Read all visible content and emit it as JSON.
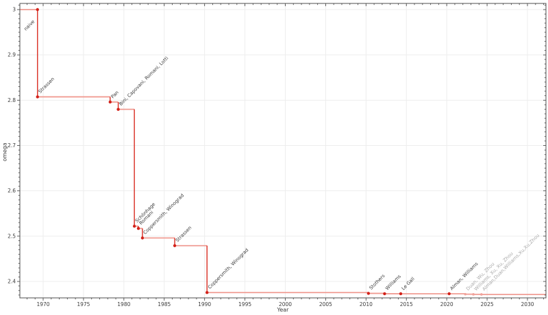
{
  "chart_data": {
    "type": "line",
    "subtype": "step-post",
    "title": "",
    "xlabel": "Year",
    "ylabel": "omega",
    "grid": true,
    "legend": "none",
    "xlim": [
      1967.1,
      2032.3
    ],
    "ylim": [
      2.364,
      3.014
    ],
    "x_ticks": [
      1970,
      1975,
      1980,
      1985,
      1990,
      1995,
      2000,
      2005,
      2010,
      2015,
      2020,
      2025,
      2030
    ],
    "x_minor_step_years": 1,
    "y_ticks": [
      2.4,
      2.5,
      2.6,
      2.7,
      2.8,
      2.9,
      3
    ],
    "y_tick_labels": [
      "2.4",
      "2.5",
      "2.6",
      "2.7",
      "2.8",
      "2.9",
      "3"
    ],
    "y_minor_step": 0.01,
    "points": [
      {
        "year": 1969,
        "omega": 3.0,
        "label": "naive",
        "status": "confirmed",
        "label_side": "below"
      },
      {
        "year": 1969,
        "omega": 2.8074,
        "label": "Strassen",
        "status": "confirmed"
      },
      {
        "year": 1978,
        "omega": 2.796,
        "label": "Pan",
        "status": "confirmed"
      },
      {
        "year": 1979,
        "omega": 2.7799,
        "label": "Bini, Capovani, Romani, Lotti",
        "status": "confirmed"
      },
      {
        "year": 1981,
        "omega": 2.522,
        "label": "Schönhage",
        "status": "confirmed"
      },
      {
        "year": 1981.5,
        "omega": 2.517,
        "label": "Romani",
        "status": "confirmed"
      },
      {
        "year": 1982,
        "omega": 2.496,
        "label": "Coppersmith, Winograd",
        "status": "confirmed"
      },
      {
        "year": 1986,
        "omega": 2.479,
        "label": "Strassen",
        "status": "confirmed"
      },
      {
        "year": 1990,
        "omega": 2.3755,
        "label": "Coppersmith, Winograd",
        "status": "confirmed"
      },
      {
        "year": 2010,
        "omega": 2.3737,
        "label": "Stothers",
        "status": "confirmed"
      },
      {
        "year": 2012,
        "omega": 2.3729,
        "label": "Williams",
        "status": "confirmed"
      },
      {
        "year": 2014,
        "omega": 2.3728639,
        "label": "Le Gall",
        "status": "confirmed"
      },
      {
        "year": 2020,
        "omega": 2.3728596,
        "label": "Alman, Williams",
        "status": "confirmed"
      },
      {
        "year": 2022,
        "omega": 2.37188,
        "label": "Duan, Wu, Zhou",
        "status": "preliminary"
      },
      {
        "year": 2023,
        "omega": 2.371552,
        "label": "Williams, Xu, Xu, Zhou",
        "status": "preliminary"
      },
      {
        "year": 2024,
        "omega": 2.371339,
        "label": "Alman,Duan,Williams,Xu,Xu,Zhou",
        "status": "preliminary"
      }
    ],
    "colors": {
      "line_horizontal": "#f09b92",
      "line_vertical": "#d92b20",
      "marker": "#d2221a",
      "marker_preliminary": "#f0a29a",
      "label": "#3a3a3a",
      "label_preliminary": "#a9a9a9",
      "grid": "#ededed",
      "spine": "#4d4d4d",
      "tick": "#4d4d4d",
      "tick_label": "#3a3a3a"
    }
  }
}
